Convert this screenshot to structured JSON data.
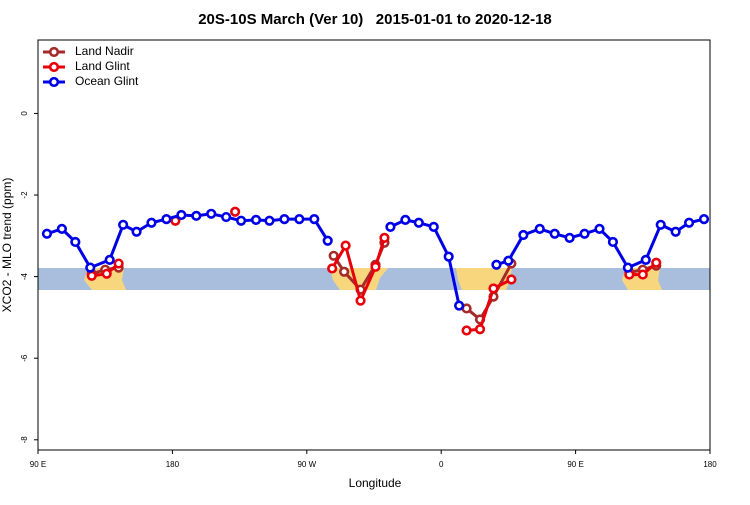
{
  "chart_data": {
    "type": "line",
    "title": "20S-10S March (Ver 10)   2015-01-01 to 2020-12-18",
    "x_label": "Longitude",
    "y_label": "XCO2 - MLO trend (ppm)",
    "xlim": [
      90,
      540
    ],
    "ylim": [
      -8.25,
      1.8
    ],
    "xticks": [
      {
        "value": 90,
        "label": "90 E"
      },
      {
        "value": 180,
        "label": "180"
      },
      {
        "value": 270,
        "label": "90 W"
      },
      {
        "value": 360,
        "label": "0"
      },
      {
        "value": 450,
        "label": "90 E"
      },
      {
        "value": 540,
        "label": "180"
      }
    ],
    "yticks": [
      0,
      -2,
      -4,
      -6,
      -8
    ],
    "legend": "top-left",
    "series": [
      {
        "name": "Land Nadir",
        "color": "#a52a2a",
        "x": [
          126,
          135,
          144,
          null,
          288,
          295,
          306,
          316,
          322,
          null,
          377,
          386,
          395,
          407,
          null,
          486,
          495,
          504
        ],
        "values": [
          -3.93,
          -3.83,
          -3.78,
          null,
          -3.49,
          -3.88,
          -4.32,
          -3.71,
          -3.17,
          null,
          -4.78,
          -5.05,
          -4.49,
          -3.68,
          null,
          -3.9,
          -3.83,
          -3.73
        ]
      },
      {
        "name": "Land Glint",
        "color": "#e8000b",
        "x": [
          126,
          136,
          144,
          null,
          182,
          null,
          222,
          null,
          287,
          296,
          306,
          316,
          322,
          null,
          377,
          386,
          395,
          407,
          null,
          486,
          495,
          504
        ],
        "values": [
          -3.98,
          -3.93,
          -3.68,
          null,
          -2.63,
          null,
          -2.41,
          null,
          -3.8,
          -3.24,
          -4.59,
          -3.76,
          -3.05,
          null,
          -5.32,
          -5.29,
          -4.29,
          -4.07,
          null,
          -3.95,
          -3.95,
          -3.66
        ]
      },
      {
        "name": "Ocean Glint",
        "color": "#0000e6",
        "x": [
          96,
          106,
          115,
          125,
          138,
          147,
          156,
          166,
          176,
          186,
          196,
          206,
          216,
          226,
          236,
          245,
          255,
          265,
          275,
          284,
          null,
          326,
          336,
          345,
          355,
          365,
          372,
          null,
          397,
          405,
          415,
          426,
          436,
          446,
          456,
          466,
          475,
          485,
          497,
          507,
          517,
          526,
          536
        ],
        "values": [
          -2.95,
          -2.83,
          -3.15,
          -3.78,
          -3.59,
          -2.73,
          -2.9,
          -2.68,
          -2.59,
          -2.49,
          -2.51,
          -2.46,
          -2.54,
          -2.63,
          -2.61,
          -2.63,
          -2.59,
          -2.59,
          -2.59,
          -3.12,
          null,
          -2.78,
          -2.61,
          -2.68,
          -2.78,
          -3.51,
          -4.71,
          null,
          -3.71,
          -3.61,
          -2.98,
          -2.83,
          -2.95,
          -3.05,
          -2.95,
          -2.83,
          -3.15,
          -3.78,
          -3.59,
          -2.73,
          -2.9,
          -2.68,
          -2.59
        ]
      }
    ]
  }
}
